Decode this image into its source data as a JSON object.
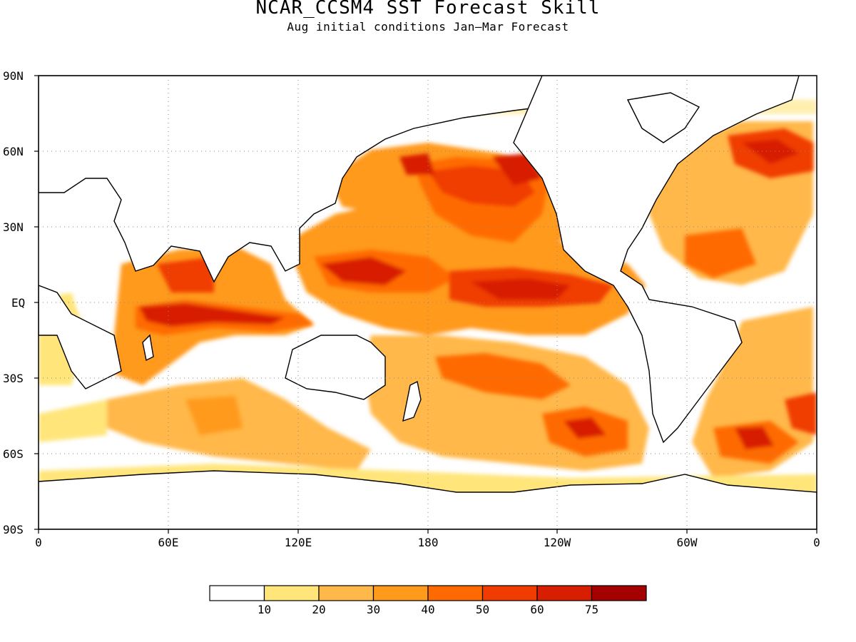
{
  "title": "NCAR_CCSM4 SST Forecast Skill",
  "subtitle": "Aug initial conditions   Jan—Mar Forecast",
  "map": {
    "projection": "equirectangular",
    "lon_range": [
      0,
      360
    ],
    "lat_range": [
      -90,
      90
    ],
    "coastlines": true,
    "gridlines": "dotted",
    "lat_ticks": [
      "90N",
      "60N",
      "30N",
      "EQ",
      "30S",
      "60S",
      "90S"
    ],
    "lon_ticks": [
      "0",
      "60E",
      "120E",
      "180",
      "120W",
      "60W",
      "0"
    ]
  },
  "colorbar": {
    "colors": [
      "#ffffff",
      "#ffe57a",
      "#ffb84a",
      "#ff9a1a",
      "#ff6a00",
      "#f03c00",
      "#d81e00",
      "#a50000"
    ],
    "labels": [
      "10",
      "20",
      "30",
      "40",
      "50",
      "60",
      "75"
    ]
  }
}
